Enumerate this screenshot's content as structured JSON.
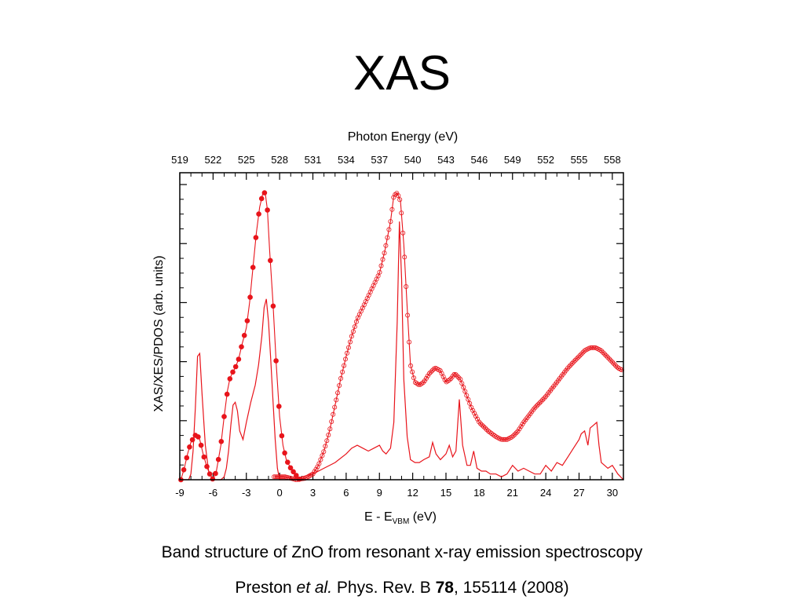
{
  "slide": {
    "title": "XAS",
    "caption": "Band structure of ZnO from resonant x-ray emission spectroscopy",
    "citation": {
      "author": "Preston",
      "etal": "et al.",
      "journal": "Phys. Rev. B",
      "volume": "78",
      "rest": ", 155114 (2008)"
    }
  },
  "chart_data": {
    "type": "line",
    "title": "",
    "xlabel_main": "E - E",
    "xlabel_sub": "VBM",
    "xlabel_unit": " (eV)",
    "ylabel": "XAS/XES/PDOS (arb. units)",
    "top_xlabel": "Photon Energy (eV)",
    "xlim": [
      -9,
      31
    ],
    "ylim": [
      0,
      1.07
    ],
    "xticks": [
      -9,
      -6,
      -3,
      0,
      3,
      6,
      9,
      12,
      15,
      18,
      21,
      24,
      27,
      30
    ],
    "top_xticks": [
      519,
      522,
      525,
      528,
      531,
      534,
      537,
      540,
      543,
      546,
      549,
      552,
      555,
      558
    ],
    "grid": false,
    "legend": "none",
    "color": "#e8141b",
    "series": [
      {
        "style": "filled-markers-line",
        "x": [
          -8.9,
          -8.6,
          -8.3,
          -8.0,
          -7.7,
          -7.5,
          -7.2,
          -6.9,
          -6.6,
          -6.3,
          -6.0,
          -5.7,
          -5.3,
          -5.0,
          -4.7,
          -4.5,
          -4.3,
          -4.0,
          -3.7,
          -3.4,
          -3.0,
          -2.7,
          -2.4,
          -2.1,
          -1.8,
          -1.5,
          -1.3,
          -1.1,
          -0.9,
          -0.6,
          -0.3,
          0.0,
          0.3,
          0.6,
          1.0,
          1.4,
          1.8
        ],
        "y": [
          0.0,
          0.04,
          0.09,
          0.13,
          0.15,
          0.16,
          0.14,
          0.09,
          0.05,
          0.02,
          0.0,
          0.03,
          0.12,
          0.22,
          0.31,
          0.35,
          0.37,
          0.39,
          0.42,
          0.47,
          0.53,
          0.62,
          0.74,
          0.86,
          0.95,
          1.0,
          1.0,
          0.94,
          0.8,
          0.62,
          0.4,
          0.22,
          0.12,
          0.07,
          0.04,
          0.02,
          0.0
        ]
      },
      {
        "style": "open-markers-line",
        "x": [
          -0.5,
          0.5,
          1.5,
          2.3,
          3.0,
          3.5,
          4.0,
          4.5,
          5.0,
          5.5,
          6.0,
          6.5,
          7.0,
          7.5,
          8.0,
          8.5,
          9.0,
          9.5,
          10.0,
          10.3,
          10.6,
          10.9,
          11.2,
          11.5,
          11.8,
          12.2,
          12.6,
          13.0,
          13.5,
          14.0,
          14.5,
          15.0,
          15.4,
          15.8,
          16.3,
          16.8,
          17.3,
          18.0,
          18.8,
          19.5,
          20.0,
          20.5,
          21.0,
          21.5,
          22.0,
          23.0,
          24.0,
          25.0,
          26.0,
          27.0,
          27.5,
          28.0,
          28.5,
          29.0,
          29.5,
          30.0,
          30.5,
          31.0
        ],
        "y": [
          0.01,
          0.01,
          0.0,
          0.005,
          0.02,
          0.05,
          0.1,
          0.17,
          0.26,
          0.35,
          0.43,
          0.5,
          0.56,
          0.6,
          0.64,
          0.68,
          0.72,
          0.8,
          0.9,
          0.99,
          1.0,
          0.97,
          0.82,
          0.6,
          0.4,
          0.34,
          0.33,
          0.34,
          0.37,
          0.39,
          0.38,
          0.34,
          0.35,
          0.37,
          0.35,
          0.3,
          0.25,
          0.2,
          0.17,
          0.15,
          0.14,
          0.14,
          0.15,
          0.17,
          0.2,
          0.25,
          0.29,
          0.34,
          0.39,
          0.43,
          0.45,
          0.46,
          0.46,
          0.45,
          0.43,
          0.41,
          0.39,
          0.38
        ]
      },
      {
        "style": "thin-line",
        "x": [
          -9.0,
          -8.6,
          -8.2,
          -8.0,
          -7.8,
          -7.6,
          -7.4,
          -7.2,
          -7.0,
          -6.7,
          -6.4,
          -6.0,
          -5.6,
          -5.3,
          -5.0,
          -4.8,
          -4.6,
          -4.4,
          -4.2,
          -4.0,
          -3.8,
          -3.6,
          -3.3,
          -3.0,
          -2.6,
          -2.2,
          -1.9,
          -1.6,
          -1.4,
          -1.2,
          -1.0,
          -0.8,
          -0.6,
          -0.4,
          -0.2,
          0.0,
          0.3,
          0.6,
          1.0,
          2.0,
          3.0,
          4.0,
          5.0,
          6.0,
          6.5,
          7.0,
          7.5,
          8.0,
          8.5,
          9.0,
          9.3,
          9.6,
          10.0,
          10.3,
          10.6,
          10.8,
          11.0,
          11.2,
          11.5,
          11.8,
          12.2,
          12.6,
          13.0,
          13.5,
          13.8,
          14.1,
          14.5,
          15.0,
          15.3,
          15.6,
          15.9,
          16.2,
          16.5,
          16.9,
          17.2,
          17.5,
          17.8,
          18.2,
          18.6,
          19.0,
          19.5,
          20.0,
          20.5,
          21.0,
          21.5,
          22.0,
          22.5,
          23.0,
          23.5,
          24.0,
          24.5,
          25.0,
          25.5,
          26.0,
          26.5,
          27.0,
          27.2,
          27.5,
          27.8,
          28.0,
          28.3,
          28.6,
          28.8,
          29.0,
          29.3,
          29.6,
          30.0,
          30.5,
          31.0
        ],
        "y": [
          0.0,
          0.0,
          0.0,
          0.02,
          0.1,
          0.25,
          0.43,
          0.44,
          0.3,
          0.12,
          0.03,
          0.0,
          0.0,
          0.0,
          0.01,
          0.04,
          0.1,
          0.19,
          0.26,
          0.27,
          0.24,
          0.17,
          0.14,
          0.2,
          0.27,
          0.33,
          0.4,
          0.5,
          0.6,
          0.63,
          0.55,
          0.42,
          0.28,
          0.14,
          0.04,
          0.0,
          0.0,
          0.0,
          0.0,
          0.01,
          0.02,
          0.04,
          0.06,
          0.09,
          0.11,
          0.12,
          0.11,
          0.1,
          0.11,
          0.12,
          0.1,
          0.09,
          0.11,
          0.2,
          0.55,
          0.9,
          0.7,
          0.35,
          0.15,
          0.07,
          0.06,
          0.06,
          0.07,
          0.08,
          0.13,
          0.09,
          0.07,
          0.09,
          0.12,
          0.08,
          0.1,
          0.28,
          0.12,
          0.05,
          0.05,
          0.1,
          0.04,
          0.03,
          0.03,
          0.02,
          0.02,
          0.01,
          0.02,
          0.05,
          0.03,
          0.04,
          0.03,
          0.02,
          0.02,
          0.05,
          0.03,
          0.06,
          0.05,
          0.08,
          0.11,
          0.14,
          0.16,
          0.17,
          0.12,
          0.18,
          0.19,
          0.2,
          0.12,
          0.06,
          0.05,
          0.04,
          0.05,
          0.02,
          0.0
        ]
      }
    ]
  }
}
